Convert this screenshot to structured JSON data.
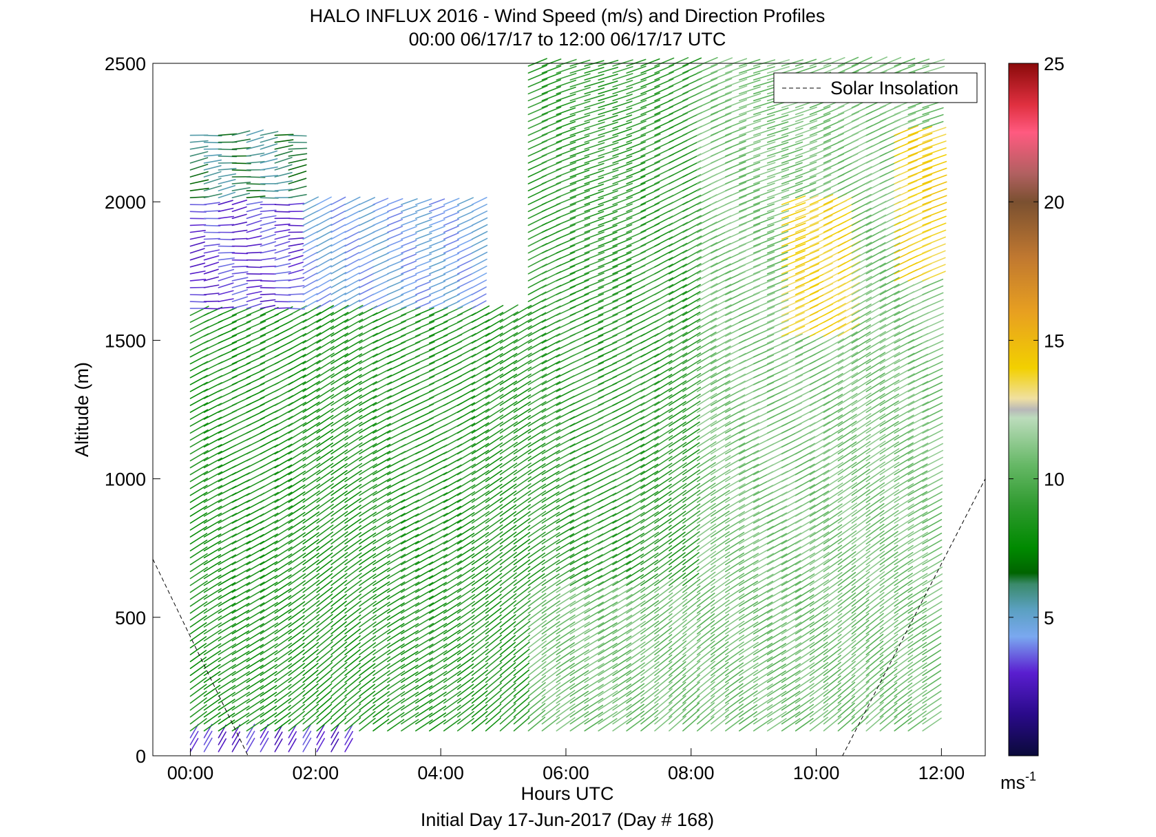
{
  "title_line1": "HALO INFLUX 2016 - Wind Speed (m/s) and Direction Profiles",
  "title_line2": "00:00 06/17/17 to 12:00 06/17/17  UTC",
  "xlabel": "Hours UTC",
  "subtitle": "Initial Day 17-Jun-2017 (Day # 168)",
  "ylabel": "Altitude (m)",
  "legend_label": "Solar Insolation",
  "colorbar_unit": "ms",
  "colorbar_unit_exp": "-1",
  "chart_data": {
    "type": "quiver",
    "xlim_hours": [
      -0.6,
      12.7
    ],
    "ylim": [
      0,
      2500
    ],
    "x_ticks": [
      {
        "value": 0,
        "label": "00:00"
      },
      {
        "value": 2,
        "label": "02:00"
      },
      {
        "value": 4,
        "label": "04:00"
      },
      {
        "value": 6,
        "label": "06:00"
      },
      {
        "value": 8,
        "label": "08:00"
      },
      {
        "value": 10,
        "label": "10:00"
      },
      {
        "value": 12,
        "label": "12:00"
      }
    ],
    "y_ticks": [
      {
        "value": 0,
        "label": "0"
      },
      {
        "value": 500,
        "label": "500"
      },
      {
        "value": 1000,
        "label": "1000"
      },
      {
        "value": 1500,
        "label": "1500"
      },
      {
        "value": 2000,
        "label": "2000"
      },
      {
        "value": 2500,
        "label": "2500"
      }
    ],
    "colorbar": {
      "range": [
        0,
        25
      ],
      "ticks": [
        {
          "value": 5,
          "label": "5"
        },
        {
          "value": 10,
          "label": "10"
        },
        {
          "value": 15,
          "label": "15"
        },
        {
          "value": 20,
          "label": "20"
        },
        {
          "value": 25,
          "label": "25"
        }
      ],
      "stops": [
        {
          "v": 0,
          "c": "#0a0a3a"
        },
        {
          "v": 1.5,
          "c": "#2a0a8a"
        },
        {
          "v": 3,
          "c": "#5a1ed0"
        },
        {
          "v": 4.3,
          "c": "#7aa8f0"
        },
        {
          "v": 5.3,
          "c": "#5aa0c0"
        },
        {
          "v": 6.2,
          "c": "#3a8a6a"
        },
        {
          "v": 6.6,
          "c": "#006400"
        },
        {
          "v": 7.5,
          "c": "#008a00"
        },
        {
          "v": 9,
          "c": "#2e9a2e"
        },
        {
          "v": 10.5,
          "c": "#66b866"
        },
        {
          "v": 12.2,
          "c": "#bcdcbc"
        },
        {
          "v": 12.5,
          "c": "#b8b8b8"
        },
        {
          "v": 12.9,
          "c": "#f0e0a0"
        },
        {
          "v": 14,
          "c": "#f2d000"
        },
        {
          "v": 16,
          "c": "#e8a020"
        },
        {
          "v": 18,
          "c": "#c07830"
        },
        {
          "v": 20,
          "c": "#7a5030"
        },
        {
          "v": 21,
          "c": "#b06060"
        },
        {
          "v": 22.5,
          "c": "#ff5a80"
        },
        {
          "v": 23.5,
          "c": "#e03040"
        },
        {
          "v": 25,
          "c": "#8a0a0a"
        }
      ]
    },
    "profile_times_hours": [
      0,
      0.22,
      0.45,
      0.67,
      0.9,
      1.12,
      1.35,
      1.57,
      1.8,
      2.02,
      2.25,
      2.47,
      2.7,
      2.92,
      3.15,
      3.37,
      3.6,
      3.82,
      4.05,
      4.27,
      4.5,
      4.72,
      4.95,
      5.17,
      5.4,
      5.62,
      5.85,
      6.07,
      6.3,
      6.52,
      6.75,
      6.97,
      7.2,
      7.42,
      7.65,
      7.87,
      8.1,
      8.32,
      8.55,
      8.77,
      9.0,
      9.22,
      9.45,
      9.67,
      9.9,
      10.12,
      10.35,
      10.57,
      10.8,
      11.02,
      11.25,
      11.47,
      11.7
    ],
    "altitude_step_m": 25,
    "speed_regimes": [
      {
        "hours": [
          0,
          2.5
        ],
        "alt": [
          0,
          80
        ],
        "speed_ms": 3.0
      },
      {
        "hours": [
          0,
          2.5
        ],
        "alt": [
          80,
          1600
        ],
        "speed_ms": 8.2
      },
      {
        "hours": [
          0,
          1.6
        ],
        "alt": [
          1600,
          2000
        ],
        "speed_ms": 3.2
      },
      {
        "hours": [
          0,
          1.6
        ],
        "alt": [
          2000,
          2250
        ],
        "speed_ms": 6.0
      },
      {
        "hours": [
          1.6,
          4.5
        ],
        "alt": [
          1600,
          2000
        ],
        "speed_ms": 4.5
      },
      {
        "hours": [
          2.5,
          5.4
        ],
        "alt": [
          80,
          1600
        ],
        "speed_ms": 8.4
      },
      {
        "hours": [
          5.4,
          8.0
        ],
        "alt": [
          600,
          2500
        ],
        "speed_ms": 8.8
      },
      {
        "hours": [
          5.4,
          11.7
        ],
        "alt": [
          80,
          600
        ],
        "speed_ms": 10.6
      },
      {
        "hours": [
          8.0,
          11.7
        ],
        "alt": [
          600,
          2500
        ],
        "speed_ms": 10.8
      },
      {
        "hours": [
          9.3,
          10.4
        ],
        "alt": [
          1500,
          2000
        ],
        "speed_ms": 13.8
      },
      {
        "hours": [
          11.2,
          11.7
        ],
        "alt": [
          1700,
          2250
        ],
        "speed_ms": 14.0
      }
    ],
    "solar_insolation_curve": [
      {
        "hour": -0.6,
        "alt": 710
      },
      {
        "hour": 0.92,
        "alt": 0
      },
      {
        "hour": 10.42,
        "alt": 0
      },
      {
        "hour": 12.7,
        "alt": 1000
      }
    ],
    "grid": false,
    "legend_position": "top-right"
  }
}
